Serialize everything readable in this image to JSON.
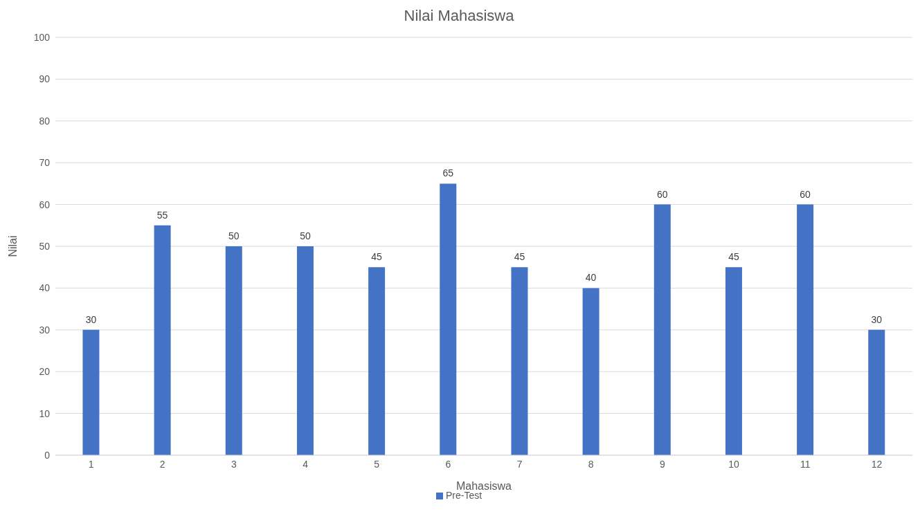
{
  "chart_data": {
    "type": "bar",
    "title": "Nilai Mahasiswa",
    "xlabel": "Mahasiswa",
    "ylabel": "Nilai",
    "categories": [
      "1",
      "2",
      "3",
      "4",
      "5",
      "6",
      "7",
      "8",
      "9",
      "10",
      "11",
      "12"
    ],
    "series": [
      {
        "name": "Pre-Test",
        "color": "#4472c4",
        "values": [
          30,
          55,
          50,
          50,
          45,
          65,
          45,
          40,
          60,
          45,
          60,
          30
        ]
      }
    ],
    "ylim": [
      0,
      100
    ],
    "yticks": [
      0,
      10,
      20,
      30,
      40,
      50,
      60,
      70,
      80,
      90,
      100
    ],
    "grid": "y",
    "legend": "bottom",
    "data_labels": true
  }
}
